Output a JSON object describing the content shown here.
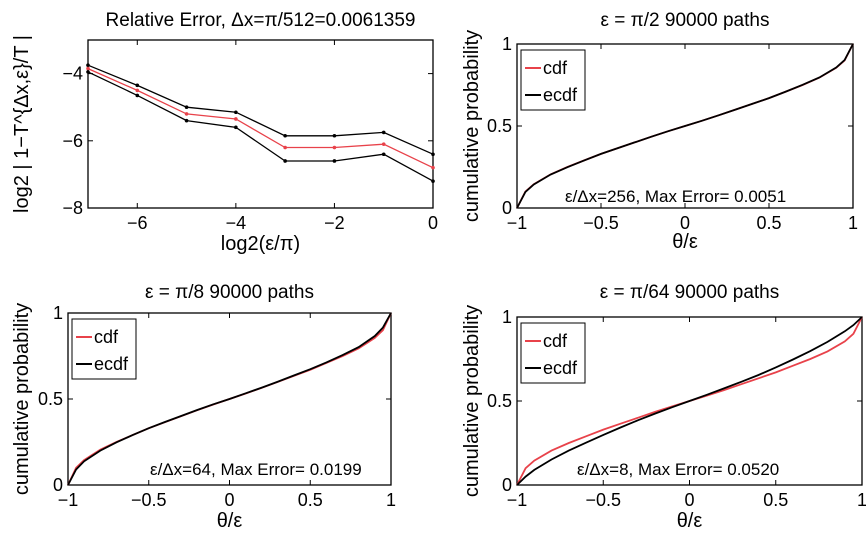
{
  "chart_data": [
    {
      "type": "line",
      "title": "Relative Error,    Δx=π/512=0.0061359",
      "xlabel": "log2(ε/π)",
      "ylabel": "log2 | 1−T^{Δx,ε}/T |",
      "xlim": [
        -7,
        0
      ],
      "ylim": [
        -8,
        -3
      ],
      "xticks": [
        -6,
        -4,
        -2,
        0
      ],
      "xtick_labels": [
        "−6",
        "−4",
        "−2",
        "0"
      ],
      "yticks": [
        -8,
        -6,
        -4
      ],
      "ytick_labels": [
        "−8",
        "−6",
        "−4"
      ],
      "x": [
        -7,
        -6,
        -5,
        -4,
        -3,
        -2,
        -1,
        0
      ],
      "series": [
        {
          "color": "#000000",
          "values": [
            -3.75,
            -4.35,
            -5.0,
            -5.15,
            -5.85,
            -5.85,
            -5.75,
            -6.4
          ]
        },
        {
          "color": "#e8424a",
          "values": [
            -3.85,
            -4.5,
            -5.2,
            -5.35,
            -6.2,
            -6.2,
            -6.1,
            -6.8
          ]
        },
        {
          "color": "#000000",
          "values": [
            -3.95,
            -4.65,
            -5.4,
            -5.6,
            -6.6,
            -6.6,
            -6.4,
            -7.2
          ]
        }
      ]
    },
    {
      "type": "line",
      "title": "ε = π/2  90000 paths",
      "xlabel": "θ/ε",
      "ylabel": "cumulative probability",
      "xlim": [
        -1,
        1
      ],
      "ylim": [
        0,
        1
      ],
      "xticks": [
        -1,
        -0.5,
        0,
        0.5,
        1
      ],
      "xtick_labels": [
        "−1",
        "−0.5",
        "0",
        "0.5",
        "1"
      ],
      "yticks": [
        0,
        0.5,
        1
      ],
      "ytick_labels": [
        "0",
        "0.5",
        "1"
      ],
      "legend": [
        "cdf",
        "ecdf"
      ],
      "legend_colors": [
        "#e8424a",
        "#000000"
      ],
      "legend_position": "top-left",
      "annotation": "ε/Δx=256, Max Error= 0.0051",
      "x": [
        -1,
        -0.95,
        -0.9,
        -0.8,
        -0.7,
        -0.6,
        -0.5,
        -0.4,
        -0.3,
        -0.2,
        -0.1,
        0,
        0.1,
        0.2,
        0.3,
        0.4,
        0.5,
        0.6,
        0.7,
        0.8,
        0.9,
        0.95,
        1
      ],
      "series": [
        {
          "name": "cdf",
          "color": "#e8424a",
          "values": [
            0,
            0.1,
            0.145,
            0.205,
            0.25,
            0.29,
            0.33,
            0.365,
            0.4,
            0.435,
            0.468,
            0.5,
            0.532,
            0.565,
            0.6,
            0.635,
            0.67,
            0.71,
            0.75,
            0.795,
            0.855,
            0.9,
            1
          ]
        },
        {
          "name": "ecdf",
          "color": "#000000",
          "values": [
            0,
            0.098,
            0.143,
            0.204,
            0.249,
            0.29,
            0.33,
            0.365,
            0.4,
            0.435,
            0.468,
            0.5,
            0.532,
            0.565,
            0.6,
            0.635,
            0.67,
            0.71,
            0.751,
            0.796,
            0.857,
            0.902,
            1
          ]
        }
      ]
    },
    {
      "type": "line",
      "title": "ε = π/8  90000 paths",
      "xlabel": "θ/ε",
      "ylabel": "cumulative probability",
      "xlim": [
        -1,
        1
      ],
      "ylim": [
        0,
        1
      ],
      "xticks": [
        -1,
        -0.5,
        0,
        0.5,
        1
      ],
      "xtick_labels": [
        "−1",
        "−0.5",
        "0",
        "0.5",
        "1"
      ],
      "yticks": [
        0,
        0.5,
        1
      ],
      "ytick_labels": [
        "0",
        "0.5",
        "1"
      ],
      "legend": [
        "cdf",
        "ecdf"
      ],
      "legend_colors": [
        "#e8424a",
        "#000000"
      ],
      "legend_position": "top-left",
      "annotation": "ε/Δx=64, Max Error= 0.0199",
      "x": [
        -1,
        -0.95,
        -0.9,
        -0.8,
        -0.7,
        -0.6,
        -0.5,
        -0.4,
        -0.3,
        -0.2,
        -0.1,
        0,
        0.1,
        0.2,
        0.3,
        0.4,
        0.5,
        0.6,
        0.7,
        0.8,
        0.9,
        0.95,
        1
      ],
      "series": [
        {
          "name": "cdf",
          "color": "#e8424a",
          "values": [
            0,
            0.1,
            0.145,
            0.205,
            0.25,
            0.29,
            0.33,
            0.365,
            0.4,
            0.435,
            0.468,
            0.5,
            0.532,
            0.565,
            0.6,
            0.635,
            0.67,
            0.71,
            0.75,
            0.795,
            0.855,
            0.9,
            1
          ]
        },
        {
          "name": "ecdf",
          "color": "#000000",
          "values": [
            0,
            0.09,
            0.138,
            0.2,
            0.248,
            0.29,
            0.33,
            0.366,
            0.401,
            0.436,
            0.469,
            0.5,
            0.533,
            0.566,
            0.601,
            0.637,
            0.673,
            0.713,
            0.755,
            0.802,
            0.866,
            0.915,
            1
          ]
        }
      ]
    },
    {
      "type": "line",
      "title": "ε = π/64  90000 paths",
      "xlabel": "θ/ε",
      "ylabel": "cumulative probability",
      "xlim": [
        -1,
        1
      ],
      "ylim": [
        0,
        1
      ],
      "xticks": [
        -1,
        -0.5,
        0,
        0.5,
        1
      ],
      "xtick_labels": [
        "−1",
        "−0.5",
        "0",
        "0.5",
        "1"
      ],
      "yticks": [
        0,
        0.5,
        1
      ],
      "ytick_labels": [
        "0",
        "0.5",
        "1"
      ],
      "legend": [
        "cdf",
        "ecdf"
      ],
      "legend_colors": [
        "#e8424a",
        "#000000"
      ],
      "legend_position": "top-left",
      "annotation": "ε/Δx=8, Max Error= 0.0520",
      "x": [
        -1,
        -0.95,
        -0.9,
        -0.8,
        -0.7,
        -0.6,
        -0.5,
        -0.4,
        -0.3,
        -0.2,
        -0.1,
        0,
        0.1,
        0.2,
        0.3,
        0.4,
        0.5,
        0.6,
        0.7,
        0.8,
        0.9,
        0.95,
        1
      ],
      "series": [
        {
          "name": "cdf",
          "color": "#e8424a",
          "values": [
            0,
            0.1,
            0.145,
            0.205,
            0.25,
            0.29,
            0.33,
            0.365,
            0.4,
            0.435,
            0.468,
            0.5,
            0.532,
            0.565,
            0.6,
            0.635,
            0.67,
            0.71,
            0.75,
            0.795,
            0.855,
            0.9,
            1
          ]
        },
        {
          "name": "ecdf",
          "color": "#000000",
          "values": [
            0,
            0.05,
            0.09,
            0.152,
            0.205,
            0.252,
            0.298,
            0.342,
            0.385,
            0.425,
            0.463,
            0.5,
            0.537,
            0.575,
            0.614,
            0.655,
            0.7,
            0.747,
            0.797,
            0.852,
            0.915,
            0.952,
            1
          ]
        }
      ]
    }
  ]
}
